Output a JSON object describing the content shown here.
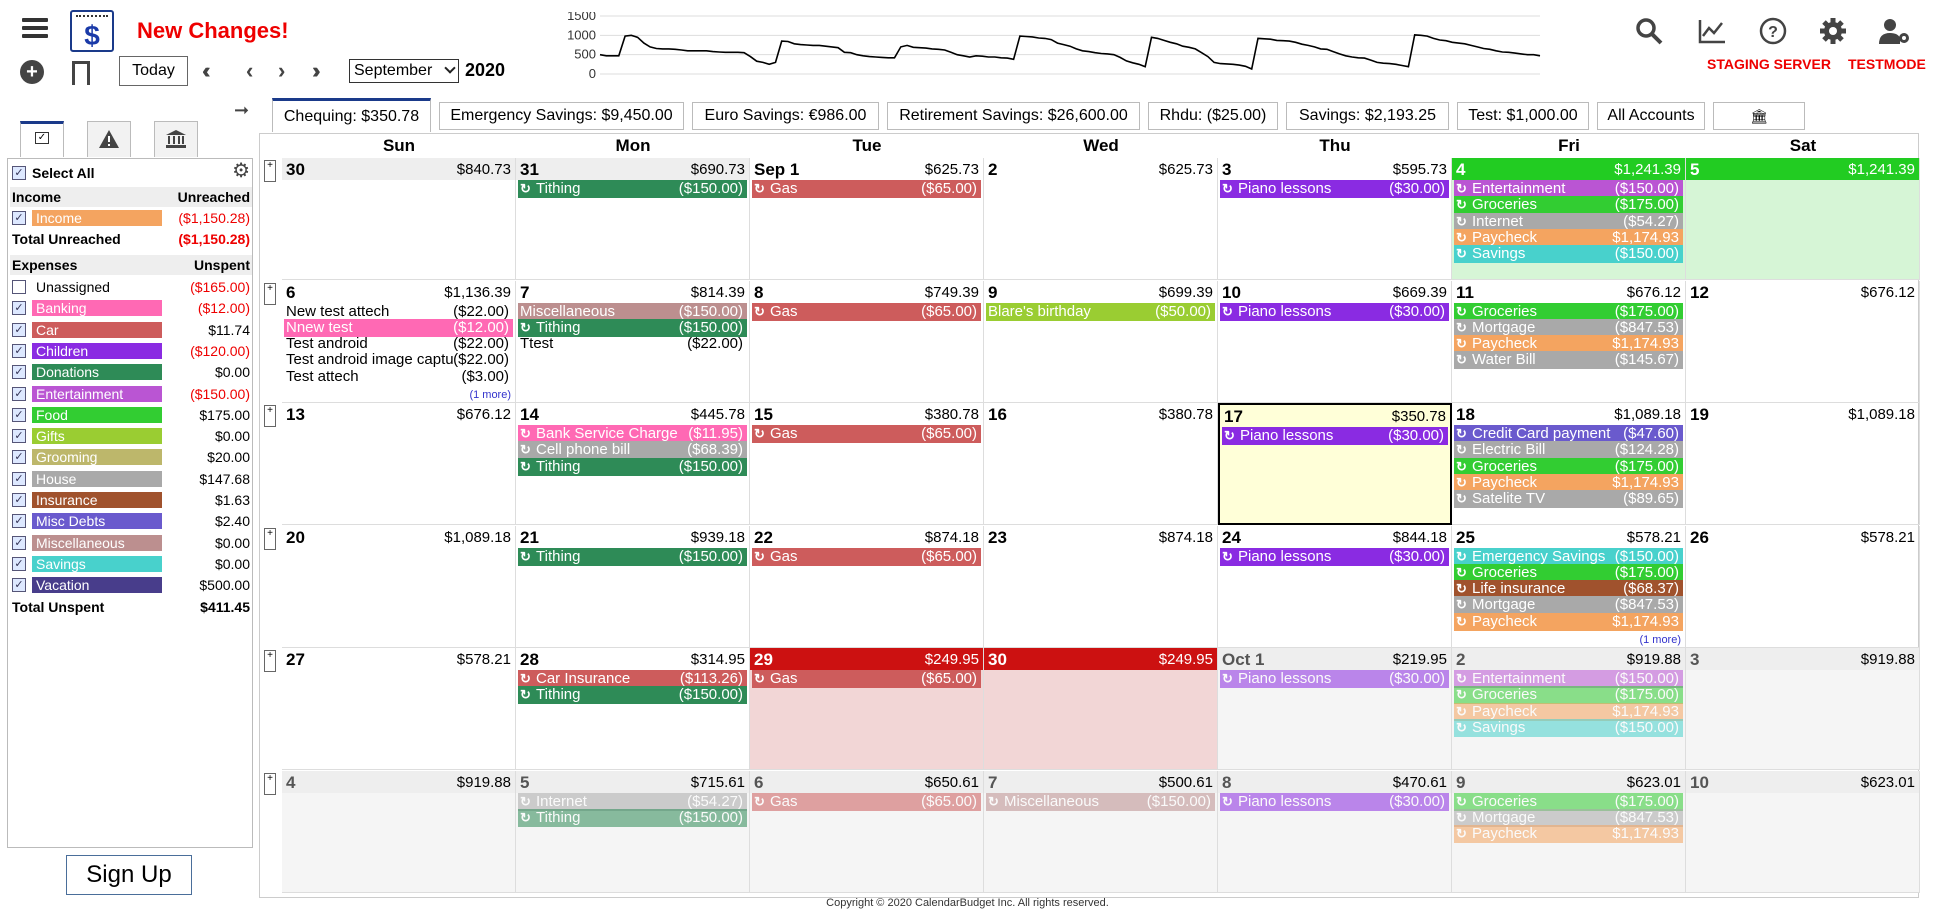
{
  "app": {
    "new_changes": "New Changes!",
    "today_label": "Today",
    "month": "September",
    "year": "2020",
    "server_label": "STAGING SERVER",
    "mode_label": "TESTMODE",
    "signup_label": "Sign Up",
    "copyright": "Copyright © 2020 CalendarBudget Inc. All rights reserved.",
    "icons": [
      "menu-icon",
      "logo-icon",
      "add-icon",
      "bookmark-icon",
      "search-icon",
      "chart-icon",
      "help-icon",
      "gear-icon",
      "user-gear-icon"
    ]
  },
  "sparkline": {
    "y_ticks": [
      "1500",
      "1000",
      "500",
      "0"
    ],
    "ylim": [
      0,
      1500
    ],
    "values": [
      500,
      470,
      470,
      470,
      980,
      1000,
      950,
      800,
      700,
      660,
      650,
      650,
      640,
      620,
      600,
      600,
      600,
      600,
      580,
      570,
      560,
      560,
      560,
      550,
      450,
      330,
      300,
      250,
      300,
      850,
      840,
      780,
      760,
      750,
      740,
      740,
      720,
      700,
      680,
      560,
      550,
      500,
      470,
      450,
      440,
      430,
      420,
      420,
      700,
      740,
      690,
      680,
      670,
      650,
      640,
      620,
      560,
      500,
      470,
      440,
      470,
      460,
      440,
      440,
      420,
      410,
      380,
      980,
      970,
      960,
      930,
      920,
      890,
      800,
      760,
      720,
      650,
      600,
      580,
      550,
      530,
      520,
      500,
      430,
      340,
      290,
      250,
      190,
      950,
      920,
      870,
      820,
      780,
      720,
      690,
      650,
      550,
      450,
      300,
      270,
      260,
      250,
      230,
      200,
      130,
      920,
      910,
      900,
      870,
      860,
      850,
      820,
      770,
      740,
      700,
      650,
      640,
      580,
      520,
      470,
      440,
      420,
      410,
      360,
      300,
      280,
      270,
      250,
      220,
      190,
      1010,
      1000,
      980,
      920,
      880,
      860,
      820,
      800,
      780,
      740,
      700,
      660,
      640,
      600,
      570,
      560,
      540,
      520,
      500,
      500,
      470
    ]
  },
  "left_panel": {
    "select_all": "Select All",
    "income_header": "Income",
    "unreached_header": "Unreached",
    "income_items": [
      {
        "name": "Income",
        "amount": "($1,150.28)",
        "color": "#f4a460",
        "neg": true
      }
    ],
    "total_unreached_label": "Total Unreached",
    "total_unreached": "($1,150.28)",
    "expenses_header": "Expenses",
    "unspent_header": "Unspent",
    "expense_items": [
      {
        "name": "Unassigned",
        "amount": "($165.00)",
        "color": "",
        "neg": true,
        "checked": false
      },
      {
        "name": "Banking",
        "amount": "($12.00)",
        "color": "#ff69b4",
        "neg": true,
        "checked": true
      },
      {
        "name": "Car",
        "amount": "$11.74",
        "color": "#cd5c5c",
        "neg": false,
        "checked": true
      },
      {
        "name": "Children",
        "amount": "($120.00)",
        "color": "#8a2be2",
        "neg": true,
        "checked": true
      },
      {
        "name": "Donations",
        "amount": "$0.00",
        "color": "#2e8b57",
        "neg": false,
        "checked": true
      },
      {
        "name": "Entertainment",
        "amount": "($150.00)",
        "color": "#ba55d3",
        "neg": true,
        "checked": true
      },
      {
        "name": "Food",
        "amount": "$175.00",
        "color": "#32cd32",
        "neg": false,
        "checked": true
      },
      {
        "name": "Gifts",
        "amount": "$0.00",
        "color": "#9acd32",
        "neg": false,
        "checked": true
      },
      {
        "name": "Grooming",
        "amount": "$20.00",
        "color": "#bdb76b",
        "neg": false,
        "checked": true
      },
      {
        "name": "House",
        "amount": "$147.68",
        "color": "#a9a9a9",
        "neg": false,
        "checked": true
      },
      {
        "name": "Insurance",
        "amount": "$1.63",
        "color": "#a0522d",
        "neg": false,
        "checked": true
      },
      {
        "name": "Misc Debts",
        "amount": "$2.40",
        "color": "#6a5acd",
        "neg": false,
        "checked": true
      },
      {
        "name": "Miscellaneous",
        "amount": "$0.00",
        "color": "#bc8f8f",
        "neg": false,
        "checked": true
      },
      {
        "name": "Savings",
        "amount": "$0.00",
        "color": "#48d1cc",
        "neg": false,
        "checked": true
      },
      {
        "name": "Vacation",
        "amount": "$500.00",
        "color": "#483d8b",
        "neg": false,
        "checked": true
      }
    ],
    "total_unspent_label": "Total Unspent",
    "total_unspent": "$411.45"
  },
  "accounts": [
    {
      "label": "Chequing: $350.78",
      "active": true
    },
    {
      "label": "Emergency Savings: $9,450.00",
      "active": false
    },
    {
      "label": "Euro Savings: €986.00",
      "active": false
    },
    {
      "label": "Retirement Savings: $26,600.00",
      "active": false
    },
    {
      "label": "Rhdu: ($25.00)",
      "active": false
    },
    {
      "label": "Savings: $2,193.25",
      "active": false
    },
    {
      "label": "Test: $1,000.00",
      "active": false
    },
    {
      "label": "All Accounts",
      "active": false
    }
  ],
  "day_names": [
    "Sun",
    "Mon",
    "Tue",
    "Wed",
    "Thu",
    "Fri",
    "Sat"
  ],
  "colors": {
    "gas": "#cd5c5c",
    "tithing": "#2e8b57",
    "piano": "#8a2be2",
    "entertainment": "#ba55d3",
    "groceries": "#32cd32",
    "internet": "#a9a9a9",
    "paycheck": "#f4a460",
    "savings": "#48d1cc",
    "mortgage": "#a9a9a9",
    "water": "#a9a9a9",
    "misc": "#bc8f8f",
    "banking": "#ff69b4",
    "gifts": "#9acd32",
    "bank": "#cd5c5c",
    "cell": "#a9a9a9",
    "credit": "#6a5acd",
    "electric": "#a9a9a9",
    "satelite": "#a9a9a9",
    "emerg": "#48d1cc",
    "life": "#a0522d",
    "carins": "#cd5c5c"
  },
  "weeks": [
    {
      "days": [
        {
          "d": "30",
          "bal": "$840.73",
          "state": "other",
          "events": []
        },
        {
          "d": "31",
          "bal": "$690.73",
          "state": "other",
          "events": [
            {
              "n": "Tithing",
              "a": "($150.00)",
              "c": "tithing"
            }
          ]
        },
        {
          "d": "Sep 1",
          "bal": "$625.73",
          "state": "",
          "events": [
            {
              "n": "Gas",
              "a": "($65.00)",
              "c": "gas"
            }
          ]
        },
        {
          "d": "2",
          "bal": "$625.73",
          "state": "",
          "events": []
        },
        {
          "d": "3",
          "bal": "$595.73",
          "state": "",
          "events": [
            {
              "n": "Piano lessons",
              "a": "($30.00)",
              "c": "piano"
            }
          ]
        },
        {
          "d": "4",
          "bal": "$1,241.39",
          "state": "green",
          "events": [
            {
              "n": "Entertainment",
              "a": "($150.00)",
              "c": "entertainment"
            },
            {
              "n": "Groceries",
              "a": "($175.00)",
              "c": "groceries"
            },
            {
              "n": "Internet",
              "a": "($54.27)",
              "c": "internet"
            },
            {
              "n": "Paycheck",
              "a": "$1,174.93",
              "c": "paycheck"
            },
            {
              "n": "Savings",
              "a": "($150.00)",
              "c": "savings"
            }
          ]
        },
        {
          "d": "5",
          "bal": "$1,241.39",
          "state": "green",
          "events": []
        }
      ]
    },
    {
      "days": [
        {
          "d": "6",
          "bal": "$1,136.39",
          "state": "",
          "events": [
            {
              "n": "New test attech",
              "a": "($22.00)",
              "c": "plain"
            },
            {
              "n": "Nnew test",
              "a": "($12.00)",
              "c": "banking",
              "norec": true
            },
            {
              "n": "Test android",
              "a": "($22.00)",
              "c": "plain"
            },
            {
              "n": "Test android image captu",
              "a": "($22.00)",
              "c": "plain"
            },
            {
              "n": "Test attech",
              "a": "($3.00)",
              "c": "plain"
            }
          ],
          "more": "(1 more)"
        },
        {
          "d": "7",
          "bal": "$814.39",
          "state": "",
          "events": [
            {
              "n": "Miscellaneous",
              "a": "($150.00)",
              "c": "misc",
              "norec": true
            },
            {
              "n": "Tithing",
              "a": "($150.00)",
              "c": "tithing"
            },
            {
              "n": "Ttest",
              "a": "($22.00)",
              "c": "plain"
            }
          ]
        },
        {
          "d": "8",
          "bal": "$749.39",
          "state": "",
          "events": [
            {
              "n": "Gas",
              "a": "($65.00)",
              "c": "gas"
            }
          ]
        },
        {
          "d": "9",
          "bal": "$699.39",
          "state": "",
          "events": [
            {
              "n": "Blare's birthday",
              "a": "($50.00)",
              "c": "gifts",
              "norec": true
            }
          ]
        },
        {
          "d": "10",
          "bal": "$669.39",
          "state": "",
          "events": [
            {
              "n": "Piano lessons",
              "a": "($30.00)",
              "c": "piano"
            }
          ]
        },
        {
          "d": "11",
          "bal": "$676.12",
          "state": "",
          "events": [
            {
              "n": "Groceries",
              "a": "($175.00)",
              "c": "groceries"
            },
            {
              "n": "Mortgage",
              "a": "($847.53)",
              "c": "mortgage"
            },
            {
              "n": "Paycheck",
              "a": "$1,174.93",
              "c": "paycheck"
            },
            {
              "n": "Water Bill",
              "a": "($145.67)",
              "c": "water"
            }
          ]
        },
        {
          "d": "12",
          "bal": "$676.12",
          "state": "",
          "events": []
        }
      ]
    },
    {
      "days": [
        {
          "d": "13",
          "bal": "$676.12",
          "state": "",
          "events": []
        },
        {
          "d": "14",
          "bal": "$445.78",
          "state": "",
          "events": [
            {
              "n": "Bank Service Charge",
              "a": "($11.95)",
              "c": "banking"
            },
            {
              "n": "Cell phone bill",
              "a": "($68.39)",
              "c": "cell"
            },
            {
              "n": "Tithing",
              "a": "($150.00)",
              "c": "tithing"
            }
          ]
        },
        {
          "d": "15",
          "bal": "$380.78",
          "state": "",
          "events": [
            {
              "n": "Gas",
              "a": "($65.00)",
              "c": "gas"
            }
          ]
        },
        {
          "d": "16",
          "bal": "$380.78",
          "state": "",
          "events": []
        },
        {
          "d": "17",
          "bal": "$350.78",
          "state": "today",
          "events": [
            {
              "n": "Piano lessons",
              "a": "($30.00)",
              "c": "piano"
            }
          ]
        },
        {
          "d": "18",
          "bal": "$1,089.18",
          "state": "",
          "events": [
            {
              "n": "Credit Card payment",
              "a": "($47.60)",
              "c": "credit"
            },
            {
              "n": "Electric Bill",
              "a": "($124.28)",
              "c": "electric"
            },
            {
              "n": "Groceries",
              "a": "($175.00)",
              "c": "groceries"
            },
            {
              "n": "Paycheck",
              "a": "$1,174.93",
              "c": "paycheck"
            },
            {
              "n": "Satelite TV",
              "a": "($89.65)",
              "c": "satelite"
            }
          ]
        },
        {
          "d": "19",
          "bal": "$1,089.18",
          "state": "",
          "events": []
        }
      ]
    },
    {
      "days": [
        {
          "d": "20",
          "bal": "$1,089.18",
          "state": "",
          "events": []
        },
        {
          "d": "21",
          "bal": "$939.18",
          "state": "",
          "events": [
            {
              "n": "Tithing",
              "a": "($150.00)",
              "c": "tithing"
            }
          ]
        },
        {
          "d": "22",
          "bal": "$874.18",
          "state": "",
          "events": [
            {
              "n": "Gas",
              "a": "($65.00)",
              "c": "gas"
            }
          ]
        },
        {
          "d": "23",
          "bal": "$874.18",
          "state": "",
          "events": []
        },
        {
          "d": "24",
          "bal": "$844.18",
          "state": "",
          "events": [
            {
              "n": "Piano lessons",
              "a": "($30.00)",
              "c": "piano"
            }
          ]
        },
        {
          "d": "25",
          "bal": "$578.21",
          "state": "",
          "events": [
            {
              "n": "Emergency Savings",
              "a": "($150.00)",
              "c": "emerg"
            },
            {
              "n": "Groceries",
              "a": "($175.00)",
              "c": "groceries"
            },
            {
              "n": "Life insurance",
              "a": "($68.37)",
              "c": "life"
            },
            {
              "n": "Mortgage",
              "a": "($847.53)",
              "c": "mortgage"
            },
            {
              "n": "Paycheck",
              "a": "$1,174.93",
              "c": "paycheck"
            }
          ],
          "more": "(1 more)"
        },
        {
          "d": "26",
          "bal": "$578.21",
          "state": "",
          "events": []
        }
      ]
    },
    {
      "days": [
        {
          "d": "27",
          "bal": "$578.21",
          "state": "",
          "events": []
        },
        {
          "d": "28",
          "bal": "$314.95",
          "state": "",
          "events": [
            {
              "n": "Car Insurance",
              "a": "($113.26)",
              "c": "carins"
            },
            {
              "n": "Tithing",
              "a": "($150.00)",
              "c": "tithing"
            }
          ]
        },
        {
          "d": "29",
          "bal": "$249.95",
          "state": "red",
          "events": [
            {
              "n": "Gas",
              "a": "($65.00)",
              "c": "gas"
            }
          ]
        },
        {
          "d": "30",
          "bal": "$249.95",
          "state": "red",
          "events": []
        },
        {
          "d": "Oct 1",
          "bal": "$219.95",
          "state": "future",
          "events": [
            {
              "n": "Piano lessons",
              "a": "($30.00)",
              "c": "piano"
            }
          ]
        },
        {
          "d": "2",
          "bal": "$919.88",
          "state": "future",
          "events": [
            {
              "n": "Entertainment",
              "a": "($150.00)",
              "c": "entertainment"
            },
            {
              "n": "Groceries",
              "a": "($175.00)",
              "c": "groceries"
            },
            {
              "n": "Paycheck",
              "a": "$1,174.93",
              "c": "paycheck"
            },
            {
              "n": "Savings",
              "a": "($150.00)",
              "c": "savings"
            }
          ]
        },
        {
          "d": "3",
          "bal": "$919.88",
          "state": "future",
          "events": []
        }
      ]
    },
    {
      "days": [
        {
          "d": "4",
          "bal": "$919.88",
          "state": "future",
          "events": []
        },
        {
          "d": "5",
          "bal": "$715.61",
          "state": "future",
          "events": [
            {
              "n": "Internet",
              "a": "($54.27)",
              "c": "internet"
            },
            {
              "n": "Tithing",
              "a": "($150.00)",
              "c": "tithing"
            }
          ]
        },
        {
          "d": "6",
          "bal": "$650.61",
          "state": "future",
          "events": [
            {
              "n": "Gas",
              "a": "($65.00)",
              "c": "gas"
            }
          ]
        },
        {
          "d": "7",
          "bal": "$500.61",
          "state": "future",
          "events": [
            {
              "n": "Miscellaneous",
              "a": "($150.00)",
              "c": "misc"
            }
          ]
        },
        {
          "d": "8",
          "bal": "$470.61",
          "state": "future",
          "events": [
            {
              "n": "Piano lessons",
              "a": "($30.00)",
              "c": "piano"
            }
          ]
        },
        {
          "d": "9",
          "bal": "$623.01",
          "state": "future",
          "events": [
            {
              "n": "Groceries",
              "a": "($175.00)",
              "c": "groceries"
            },
            {
              "n": "Mortgage",
              "a": "($847.53)",
              "c": "mortgage"
            },
            {
              "n": "Paycheck",
              "a": "$1,174.93",
              "c": "paycheck"
            }
          ]
        },
        {
          "d": "10",
          "bal": "$623.01",
          "state": "future",
          "events": []
        }
      ]
    }
  ]
}
